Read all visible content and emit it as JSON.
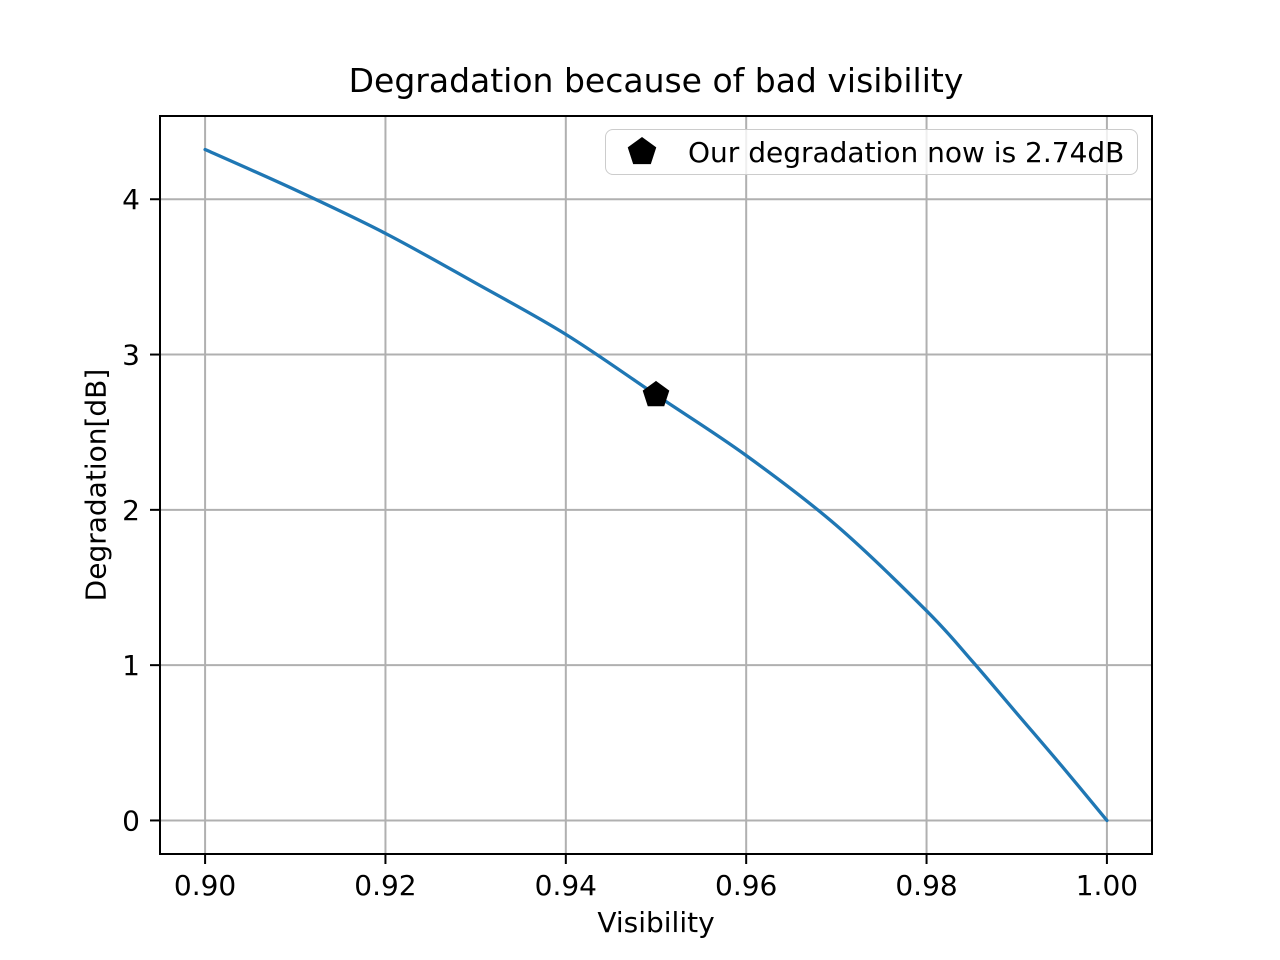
{
  "chart_data": {
    "type": "line",
    "title": "Degradation because of bad visibility",
    "xlabel": "Visibility",
    "ylabel": "Degradation[dB]",
    "xlim": [
      0.895,
      1.005
    ],
    "ylim": [
      -0.216,
      4.536
    ],
    "grid": true,
    "xticks": {
      "values": [
        0.9,
        0.92,
        0.94,
        0.96,
        0.98,
        1.0
      ],
      "labels": [
        "0.90",
        "0.92",
        "0.94",
        "0.96",
        "0.98",
        "1.00"
      ]
    },
    "yticks": {
      "values": [
        0,
        1,
        2,
        3,
        4
      ],
      "labels": [
        "0",
        "1",
        "2",
        "3",
        "4"
      ]
    },
    "series": [
      {
        "name": "degradation_vs_visibility",
        "color": "#1f77b4",
        "line_width": 3.3,
        "x": [
          0.9,
          0.91,
          0.92,
          0.93,
          0.94,
          0.95,
          0.96,
          0.97,
          0.98,
          0.985,
          0.99,
          0.995,
          1.0
        ],
        "y": [
          4.32,
          4.06,
          3.78,
          3.46,
          3.13,
          2.74,
          2.35,
          1.9,
          1.35,
          1.03,
          0.69,
          0.35,
          0.0
        ]
      }
    ],
    "annotation_marker": {
      "shape": "pentagon",
      "color": "#000000",
      "x": 0.95,
      "y": 2.74,
      "radius_px": 14
    },
    "legend": {
      "position": "upper right",
      "entries": [
        {
          "marker": "pentagon",
          "marker_color": "#000000",
          "label": "Our degradation now is 2.74dB"
        }
      ]
    },
    "style": {
      "background": "#ffffff",
      "grid_color": "#b0b0b0",
      "spine_color": "#000000",
      "tick_color": "#000000",
      "text_color": "#000000"
    }
  }
}
